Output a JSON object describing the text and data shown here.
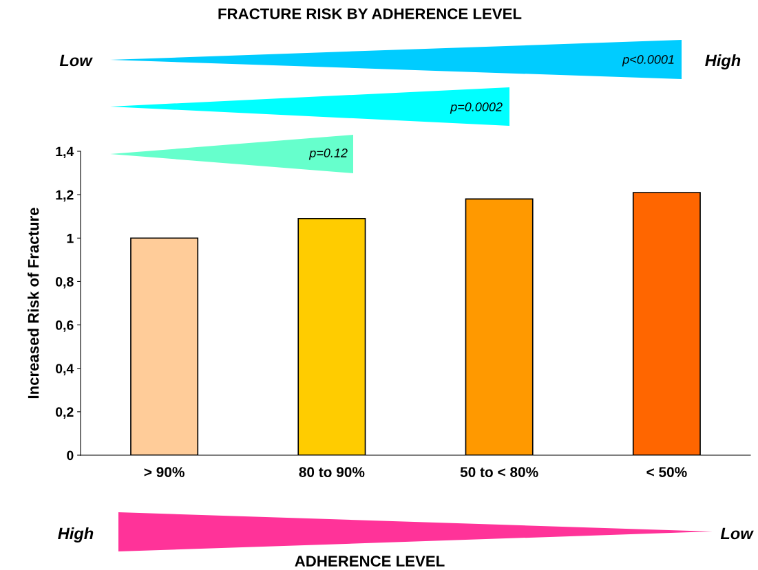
{
  "chart_data": {
    "type": "bar",
    "title": "FRACTURE RISK BY ADHERENCE LEVEL",
    "ylabel": "Increased Risk of Fracture",
    "categories": [
      "> 90%",
      "80 to 90%",
      "50 to < 80%",
      "< 50%"
    ],
    "values": [
      1.0,
      1.09,
      1.18,
      1.21
    ],
    "colors": [
      "#ffcc99",
      "#ffcc00",
      "#ff9900",
      "#ff6600"
    ],
    "ylim": [
      0,
      1.4
    ],
    "yticks": [
      0,
      {
        "value": 0.2,
        "label": "0,2"
      },
      {
        "value": 0.4,
        "label": "0,4"
      },
      {
        "value": 0.6,
        "label": "0,6"
      },
      {
        "value": 0.8,
        "label": "0,8"
      },
      1,
      {
        "value": 1.2,
        "label": "1,2"
      },
      {
        "value": 1.4,
        "label": "1,4"
      }
    ],
    "grid": false,
    "legend": false,
    "annotations": [
      "Low",
      "High",
      "p<0.0001",
      "p=0.0002",
      "p=0.12",
      "High",
      "Low",
      "ADHERENCE LEVEL"
    ]
  }
}
